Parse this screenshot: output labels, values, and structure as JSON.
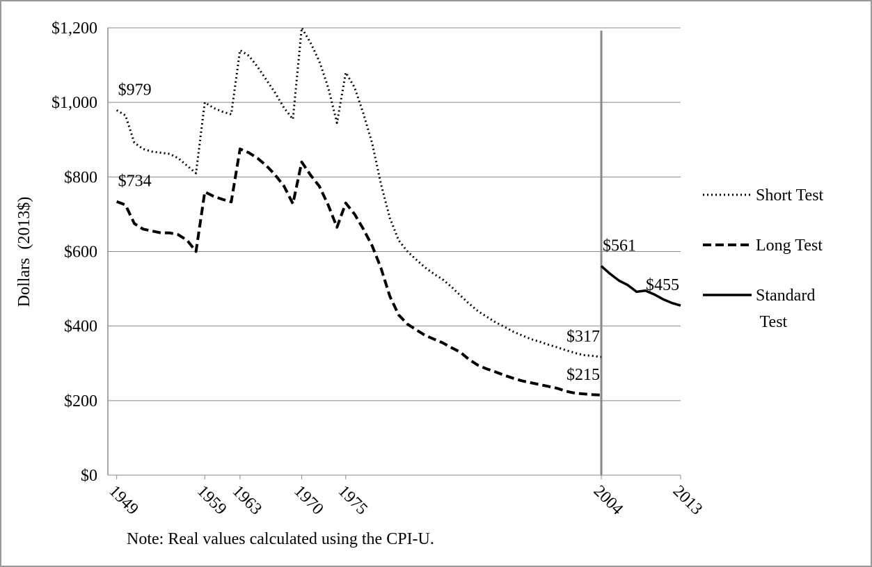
{
  "chart_data": {
    "type": "line",
    "y_label": "Dollars  (2013$)",
    "note": "Note: Real values calculated using the CPI-U.",
    "x": [
      1949,
      1950,
      1951,
      1952,
      1953,
      1954,
      1955,
      1956,
      1957,
      1958,
      1959,
      1960,
      1961,
      1962,
      1963,
      1964,
      1965,
      1966,
      1967,
      1968,
      1969,
      1970,
      1971,
      1972,
      1973,
      1974,
      1975,
      1976,
      1977,
      1978,
      1979,
      1980,
      1981,
      1982,
      1983,
      1984,
      1985,
      1986,
      1987,
      1988,
      1989,
      1990,
      1991,
      1992,
      1993,
      1994,
      1995,
      1996,
      1997,
      1998,
      1999,
      2000,
      2001,
      2002,
      2003,
      2004,
      2005,
      2006,
      2007,
      2008,
      2009,
      2010,
      2011,
      2012,
      2013
    ],
    "xlim": [
      1948,
      2013
    ],
    "xticks": [
      1949,
      1959,
      1963,
      1970,
      1975,
      2004,
      2013
    ],
    "ylim": [
      0,
      1200
    ],
    "yticks": [
      {
        "value": 0,
        "label": "$0"
      },
      {
        "value": 200,
        "label": "$200"
      },
      {
        "value": 400,
        "label": "$400"
      },
      {
        "value": 600,
        "label": "$600"
      },
      {
        "value": 800,
        "label": "$800"
      },
      {
        "value": 1000,
        "label": "$1,000"
      },
      {
        "value": 1200,
        "label": "$1,200"
      }
    ],
    "grid": true,
    "vlines": [
      2004
    ],
    "legend": "right",
    "series": [
      {
        "name": "Short Test",
        "color": "#000000",
        "style": "dotted",
        "values": [
          979,
          965,
          892,
          875,
          868,
          865,
          862,
          850,
          830,
          810,
          1000,
          985,
          975,
          968,
          1140,
          1125,
          1095,
          1060,
          1025,
          985,
          955,
          1200,
          1160,
          1110,
          1040,
          945,
          1080,
          1040,
          970,
          890,
          780,
          690,
          630,
          600,
          578,
          557,
          540,
          525,
          505,
          482,
          460,
          440,
          425,
          410,
          398,
          385,
          375,
          365,
          358,
          350,
          343,
          335,
          328,
          322,
          320,
          317,
          null,
          null,
          null,
          null,
          null,
          null,
          null,
          null,
          null
        ],
        "value_labels": [
          "$979",
          null,
          null,
          null,
          null,
          null,
          null,
          null,
          null,
          null,
          null,
          null,
          null,
          null,
          null,
          null,
          null,
          null,
          null,
          null,
          null,
          null,
          null,
          null,
          null,
          null,
          null,
          null,
          null,
          null,
          null,
          null,
          null,
          null,
          null,
          null,
          null,
          null,
          null,
          null,
          null,
          null,
          null,
          null,
          null,
          null,
          null,
          null,
          null,
          null,
          null,
          null,
          null,
          null,
          null,
          "$317",
          null,
          null,
          null,
          null,
          null,
          null,
          null,
          null,
          null
        ]
      },
      {
        "name": "Long Test",
        "color": "#000000",
        "style": "dashed",
        "values": [
          734,
          725,
          675,
          660,
          655,
          650,
          650,
          645,
          630,
          600,
          760,
          748,
          740,
          733,
          875,
          865,
          850,
          830,
          805,
          775,
          728,
          840,
          805,
          775,
          725,
          665,
          730,
          700,
          660,
          615,
          555,
          480,
          430,
          405,
          390,
          375,
          365,
          355,
          342,
          330,
          310,
          295,
          285,
          277,
          268,
          260,
          253,
          248,
          243,
          238,
          233,
          225,
          220,
          218,
          216,
          215,
          null,
          null,
          null,
          null,
          null,
          null,
          null,
          null,
          null
        ],
        "value_labels": [
          "$734",
          null,
          null,
          null,
          null,
          null,
          null,
          null,
          null,
          null,
          null,
          null,
          null,
          null,
          null,
          null,
          null,
          null,
          null,
          null,
          null,
          null,
          null,
          null,
          null,
          null,
          null,
          null,
          null,
          null,
          null,
          null,
          null,
          null,
          null,
          null,
          null,
          null,
          null,
          null,
          null,
          null,
          null,
          null,
          null,
          null,
          null,
          null,
          null,
          null,
          null,
          null,
          null,
          null,
          null,
          "$215",
          null,
          null,
          null,
          null,
          null,
          null,
          null,
          null,
          null
        ]
      },
      {
        "name": "Standard Test",
        "color": "#000000",
        "style": "solid",
        "values": [
          null,
          null,
          null,
          null,
          null,
          null,
          null,
          null,
          null,
          null,
          null,
          null,
          null,
          null,
          null,
          null,
          null,
          null,
          null,
          null,
          null,
          null,
          null,
          null,
          null,
          null,
          null,
          null,
          null,
          null,
          null,
          null,
          null,
          null,
          null,
          null,
          null,
          null,
          null,
          null,
          null,
          null,
          null,
          null,
          null,
          null,
          null,
          null,
          null,
          null,
          null,
          null,
          null,
          null,
          null,
          561,
          540,
          522,
          510,
          492,
          495,
          485,
          472,
          462,
          455
        ],
        "value_labels": [
          null,
          null,
          null,
          null,
          null,
          null,
          null,
          null,
          null,
          null,
          null,
          null,
          null,
          null,
          null,
          null,
          null,
          null,
          null,
          null,
          null,
          null,
          null,
          null,
          null,
          null,
          null,
          null,
          null,
          null,
          null,
          null,
          null,
          null,
          null,
          null,
          null,
          null,
          null,
          null,
          null,
          null,
          null,
          null,
          null,
          null,
          null,
          null,
          null,
          null,
          null,
          null,
          null,
          null,
          null,
          "$561",
          null,
          null,
          null,
          null,
          null,
          null,
          null,
          null,
          "$455"
        ]
      }
    ]
  }
}
